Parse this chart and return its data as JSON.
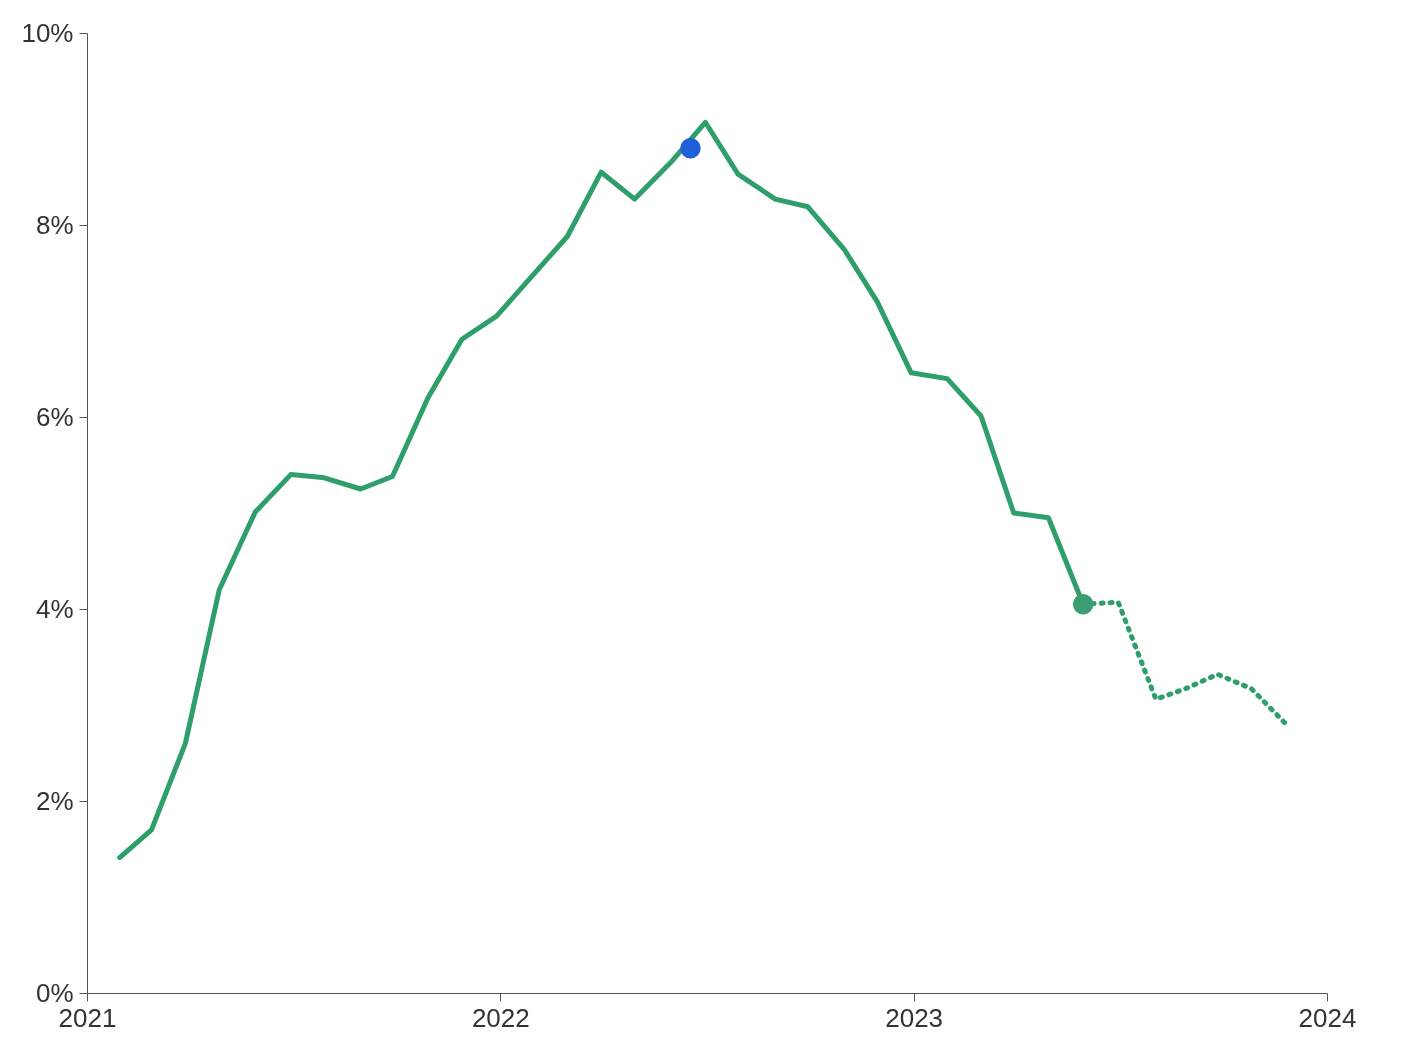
{
  "chart_data": {
    "type": "line",
    "xlim": [
      2021,
      2024
    ],
    "xticks": [
      2021,
      2022,
      2023,
      2024
    ],
    "ylim": [
      0,
      10
    ],
    "yticks": [
      {
        "value": 0,
        "label": "0%"
      },
      {
        "value": 2,
        "label": "2%"
      },
      {
        "value": 4,
        "label": "4%"
      },
      {
        "value": 6,
        "label": "6%"
      },
      {
        "value": 8,
        "label": "8%"
      },
      {
        "value": 10,
        "label": "10%"
      }
    ],
    "grid": false,
    "series": [
      {
        "color": "#2e9e6b",
        "line_style": "solid",
        "x": [
          2021.079,
          2021.156,
          2021.238,
          2021.32,
          2021.407,
          2021.493,
          2021.57,
          2021.662,
          2021.739,
          2021.825,
          2021.907,
          2021.991,
          2022.075,
          2022.162,
          2022.244,
          2022.325,
          2022.412,
          2022.496,
          2022.575,
          2022.665,
          2022.744,
          2022.833,
          2022.912,
          2022.994,
          2023.081,
          2023.163,
          2023.242,
          2023.326,
          2023.41
        ],
        "values": [
          1.41,
          1.7,
          2.6,
          4.2,
          5.01,
          5.4,
          5.37,
          5.25,
          5.38,
          6.2,
          6.81,
          7.05,
          7.46,
          7.88,
          8.55,
          8.27,
          8.65,
          9.07,
          8.53,
          8.27,
          8.19,
          7.74,
          7.2,
          6.46,
          6.4,
          6.01,
          5.0,
          4.95,
          4.05
        ]
      },
      {
        "color": "#2e9e6b",
        "line_style": "dotted",
        "x": [
          2023.41,
          2023.495,
          2023.586,
          2023.658,
          2023.735,
          2023.817,
          2023.899
        ],
        "values": [
          4.05,
          4.07,
          3.06,
          3.17,
          3.32,
          3.17,
          2.81
        ]
      },
      {
        "type": "scatter",
        "marker": "circle",
        "x": [
          2022.46,
          2023.41
        ],
        "values": [
          8.8,
          4.05
        ],
        "colors": [
          "#1f5fd9",
          "#3a9e72"
        ]
      }
    ]
  }
}
